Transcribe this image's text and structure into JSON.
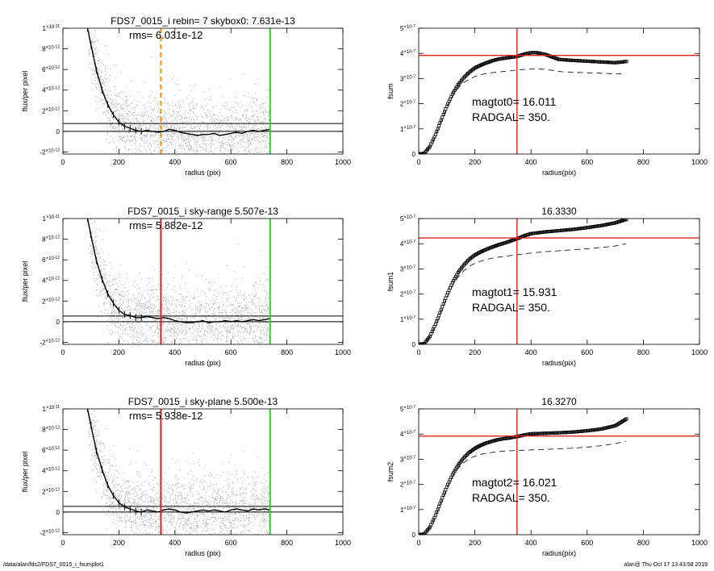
{
  "footer": {
    "left": "/data/alan/fds2/FDS7_0015_i_fsumplot1",
    "right": "alan@  Thu Oct 17 13:43:58 2019"
  },
  "chart_data": [
    {
      "type": "scatter",
      "panel": "left-1",
      "title": "FDS7_0015_i rebin= 7    skybox0:  7.631e-13",
      "annotation": "rms= 6.031e-12",
      "xlabel": "radius (pix)",
      "ylabel": "flux/per pixel",
      "xlim": [
        0,
        1000
      ],
      "ylim": [
        -2.2e-12,
        1e-11
      ],
      "xticks": [
        "0",
        "200",
        "400",
        "600",
        "800",
        "1000"
      ],
      "yticks": [
        {
          "v": -2e-12,
          "m": "-2",
          "e": "-12"
        },
        {
          "v": 0,
          "m": "0",
          "e": ""
        },
        {
          "v": 2e-12,
          "m": "2",
          "e": "-12"
        },
        {
          "v": 4e-12,
          "m": "4",
          "e": "-12"
        },
        {
          "v": 6e-12,
          "m": "6",
          "e": "-12"
        },
        {
          "v": 8e-12,
          "m": "8",
          "e": "-12"
        },
        {
          "v": 1e-11,
          "m": "1",
          "e": "-11"
        }
      ],
      "profile": {
        "x": [
          88,
          100,
          120,
          140,
          160,
          180,
          200,
          220,
          240,
          260,
          280,
          300,
          320,
          340,
          360,
          380,
          400,
          420,
          440,
          460,
          480,
          500,
          520,
          540,
          560,
          580,
          600,
          620,
          640,
          660,
          680,
          700,
          720,
          740
        ],
        "y": [
          1e-11,
          8.4e-12,
          5.9e-12,
          4e-12,
          2.6e-12,
          1.6e-12,
          9e-13,
          5e-13,
          3e-13,
          1e-13,
          0,
          1e-13,
          0,
          -1e-13,
          0,
          2e-13,
          1e-13,
          -1e-13,
          -2e-13,
          -3e-13,
          -4e-13,
          -3e-13,
          -3e-13,
          -2e-13,
          -4e-13,
          -3e-13,
          -2e-13,
          -1e-13,
          -2e-13,
          0,
          1e-13,
          0,
          1e-13,
          2e-13
        ]
      },
      "hlines": [
        {
          "y": 0,
          "color": "#000000"
        },
        {
          "y": 7.631e-13,
          "color": "#000000"
        }
      ],
      "vlines": [
        {
          "x": 350,
          "color": "#ff8c00",
          "style": "dashed"
        },
        {
          "x": 740,
          "color": "#33cc33",
          "style": "solid"
        }
      ],
      "noise_sd": 2.2e-12,
      "scatter_color": "#aaaaaa"
    },
    {
      "type": "line",
      "panel": "right-1",
      "title": "",
      "xlabel": "radius(pix)",
      "ylabel": "fsum",
      "xlim": [
        0,
        1000
      ],
      "ylim": [
        0,
        5e-07
      ],
      "xticks": [
        "0",
        "200",
        "400",
        "600",
        "800",
        "1000"
      ],
      "yticks": [
        {
          "v": 0,
          "m": "0",
          "e": ""
        },
        {
          "v": 1e-07,
          "m": "1",
          "e": "-7"
        },
        {
          "v": 2e-07,
          "m": "2",
          "e": "-7"
        },
        {
          "v": 3e-07,
          "m": "3",
          "e": "-7"
        },
        {
          "v": 4e-07,
          "m": "4",
          "e": "-7"
        },
        {
          "v": 5e-07,
          "m": "5",
          "e": "-7"
        }
      ],
      "annotation1": "magtot0=  16.011",
      "annotation2": "RADGAL=    350.",
      "series": [
        {
          "style": "symbols",
          "x": [
            0,
            20,
            40,
            60,
            80,
            100,
            120,
            140,
            160,
            180,
            200,
            220,
            240,
            260,
            280,
            300,
            320,
            350,
            380,
            400,
            420,
            450,
            480,
            500,
            550,
            600,
            650,
            700,
            740
          ],
          "y": [
            0,
            3e-09,
            3e-08,
            7.8e-08,
            1.35e-07,
            1.9e-07,
            2.38e-07,
            2.75e-07,
            3.03e-07,
            3.25e-07,
            3.42e-07,
            3.53e-07,
            3.62e-07,
            3.7e-07,
            3.76e-07,
            3.8e-07,
            3.83e-07,
            3.88e-07,
            3.98e-07,
            4.03e-07,
            4.03e-07,
            3.96e-07,
            3.84e-07,
            3.76e-07,
            3.72e-07,
            3.69e-07,
            3.66e-07,
            3.63e-07,
            3.68e-07
          ]
        },
        {
          "style": "dashed",
          "x": [
            0,
            20,
            40,
            60,
            80,
            100,
            120,
            140,
            160,
            180,
            200,
            220,
            240,
            260,
            280,
            300,
            320,
            350,
            400,
            450,
            500,
            550,
            600,
            650,
            700,
            740
          ],
          "y": [
            0,
            3e-09,
            2.8e-08,
            7.5e-08,
            1.3e-07,
            1.84e-07,
            2.3e-07,
            2.62e-07,
            2.83e-07,
            2.98e-07,
            3.08e-07,
            3.15e-07,
            3.2e-07,
            3.23e-07,
            3.26e-07,
            3.28e-07,
            3.3e-07,
            3.34e-07,
            3.38e-07,
            3.37e-07,
            3.28e-07,
            3.25e-07,
            3.23e-07,
            3.21e-07,
            3.19e-07,
            3.2e-07
          ]
        }
      ],
      "hline": {
        "y": 3.92e-07,
        "color": "#dd2222"
      },
      "vline": {
        "x": 350,
        "color": "#dd2222"
      }
    },
    {
      "type": "scatter",
      "panel": "left-2",
      "title": "FDS7_0015_i sky-range  5.507e-13",
      "annotation": "rms= 5.882e-12",
      "xlabel": "radius (pix)",
      "ylabel": "flux/per pixel",
      "xlim": [
        0,
        1000
      ],
      "ylim": [
        -2.2e-12,
        1e-11
      ],
      "xticks": [
        "0",
        "200",
        "400",
        "600",
        "800",
        "1000"
      ],
      "yticks": [
        {
          "v": -2e-12,
          "m": "-2",
          "e": "-12"
        },
        {
          "v": 0,
          "m": "0",
          "e": ""
        },
        {
          "v": 2e-12,
          "m": "2",
          "e": "-12"
        },
        {
          "v": 4e-12,
          "m": "4",
          "e": "-12"
        },
        {
          "v": 6e-12,
          "m": "6",
          "e": "-12"
        },
        {
          "v": 8e-12,
          "m": "8",
          "e": "-12"
        },
        {
          "v": 1e-11,
          "m": "1",
          "e": "-11"
        }
      ],
      "profile": {
        "x": [
          88,
          100,
          120,
          140,
          160,
          180,
          200,
          220,
          240,
          260,
          280,
          300,
          320,
          340,
          360,
          380,
          400,
          420,
          440,
          460,
          480,
          500,
          520,
          540,
          560,
          580,
          600,
          620,
          640,
          660,
          680,
          700,
          720,
          740
        ],
        "y": [
          1e-11,
          8.4e-12,
          5.9e-12,
          4.1e-12,
          2.7e-12,
          1.8e-12,
          1.1e-12,
          7e-13,
          6e-13,
          4e-13,
          4e-13,
          5e-13,
          4e-13,
          3e-13,
          4e-13,
          3e-13,
          1e-13,
          0,
          -1e-13,
          -1e-13,
          0,
          1e-13,
          -1e-13,
          0,
          0,
          1e-13,
          0,
          1e-13,
          0,
          1e-13,
          2e-13,
          1e-13,
          2e-13,
          3e-13
        ]
      },
      "hlines": [
        {
          "y": 0,
          "color": "#000000"
        },
        {
          "y": 5.507e-13,
          "color": "#000000"
        }
      ],
      "vlines": [
        {
          "x": 350,
          "color": "#dd2222",
          "style": "solid"
        },
        {
          "x": 740,
          "color": "#33cc33",
          "style": "solid"
        }
      ],
      "noise_sd": 2.2e-12,
      "scatter_color": "#aaaaaa"
    },
    {
      "type": "line",
      "panel": "right-2",
      "title": "16.3330",
      "xlabel": "radius(pix)",
      "ylabel": "fsum1",
      "xlim": [
        0,
        1000
      ],
      "ylim": [
        0,
        5e-07
      ],
      "xticks": [
        "0",
        "200",
        "400",
        "600",
        "800",
        "1000"
      ],
      "yticks": [
        {
          "v": 0,
          "m": "0",
          "e": ""
        },
        {
          "v": 1e-07,
          "m": "1",
          "e": "-7"
        },
        {
          "v": 2e-07,
          "m": "2",
          "e": "-7"
        },
        {
          "v": 3e-07,
          "m": "3",
          "e": "-7"
        },
        {
          "v": 4e-07,
          "m": "4",
          "e": "-7"
        },
        {
          "v": 5e-07,
          "m": "5",
          "e": "-7"
        }
      ],
      "annotation1": "magtot1=  15.931",
      "annotation2": "RADGAL=    350.",
      "series": [
        {
          "style": "symbols",
          "x": [
            0,
            20,
            40,
            60,
            80,
            100,
            120,
            140,
            160,
            180,
            200,
            220,
            240,
            260,
            280,
            300,
            320,
            350,
            380,
            400,
            450,
            500,
            550,
            600,
            650,
            700,
            740
          ],
          "y": [
            0,
            3e-09,
            3.2e-08,
            8e-08,
            1.38e-07,
            1.95e-07,
            2.45e-07,
            2.85e-07,
            3.15e-07,
            3.38e-07,
            3.55e-07,
            3.67e-07,
            3.77e-07,
            3.86e-07,
            3.94e-07,
            4.01e-07,
            4.08e-07,
            4.2e-07,
            4.33e-07,
            4.4e-07,
            4.47e-07,
            4.52e-07,
            4.57e-07,
            4.64e-07,
            4.72e-07,
            4.83e-07,
            4.97e-07
          ]
        },
        {
          "style": "dashed",
          "x": [
            0,
            20,
            40,
            60,
            80,
            100,
            120,
            140,
            160,
            180,
            200,
            220,
            240,
            260,
            280,
            300,
            320,
            350,
            400,
            450,
            500,
            550,
            600,
            650,
            700,
            740
          ],
          "y": [
            0,
            3e-09,
            3e-08,
            7.6e-08,
            1.32e-07,
            1.86e-07,
            2.33e-07,
            2.68e-07,
            2.92e-07,
            3.1e-07,
            3.22e-07,
            3.3e-07,
            3.37e-07,
            3.42e-07,
            3.46e-07,
            3.49e-07,
            3.52e-07,
            3.56e-07,
            3.63e-07,
            3.68e-07,
            3.72e-07,
            3.76e-07,
            3.8e-07,
            3.85e-07,
            3.91e-07,
            4e-07
          ]
        }
      ],
      "hline": {
        "y": 4.23e-07,
        "color": "#dd2222"
      },
      "vline": {
        "x": 350,
        "color": "#dd2222"
      }
    },
    {
      "type": "scatter",
      "panel": "left-3",
      "title": "FDS7_0015_i sky-plane  5.500e-13",
      "annotation": "rms= 5.938e-12",
      "xlabel": "radius (pix)",
      "ylabel": "flux/per pixel",
      "xlim": [
        0,
        1000
      ],
      "ylim": [
        -2.2e-12,
        1e-11
      ],
      "xticks": [
        "0",
        "200",
        "400",
        "600",
        "800",
        "1000"
      ],
      "yticks": [
        {
          "v": -2e-12,
          "m": "-2",
          "e": "-12"
        },
        {
          "v": 0,
          "m": "0",
          "e": ""
        },
        {
          "v": 2e-12,
          "m": "2",
          "e": "-12"
        },
        {
          "v": 4e-12,
          "m": "4",
          "e": "-12"
        },
        {
          "v": 6e-12,
          "m": "6",
          "e": "-12"
        },
        {
          "v": 8e-12,
          "m": "8",
          "e": "-12"
        },
        {
          "v": 1e-11,
          "m": "1",
          "e": "-11"
        }
      ],
      "profile": {
        "x": [
          88,
          100,
          120,
          140,
          160,
          180,
          200,
          220,
          240,
          260,
          280,
          300,
          320,
          340,
          360,
          380,
          400,
          420,
          440,
          460,
          480,
          500,
          520,
          540,
          560,
          580,
          600,
          620,
          640,
          660,
          680,
          700,
          720,
          740
        ],
        "y": [
          1e-11,
          8.4e-12,
          5.9e-12,
          4.1e-12,
          2.6e-12,
          1.6e-12,
          9e-13,
          5e-13,
          3e-13,
          1e-13,
          0,
          2e-13,
          1e-13,
          0,
          2e-13,
          3e-13,
          2e-13,
          0,
          -1e-13,
          0,
          1e-13,
          2e-13,
          1e-13,
          2e-13,
          1e-13,
          0,
          2e-13,
          3e-13,
          2e-13,
          1e-13,
          3e-13,
          2e-13,
          3e-13,
          2e-13
        ]
      },
      "hlines": [
        {
          "y": 0,
          "color": "#000000"
        },
        {
          "y": 5.5e-13,
          "color": "#000000"
        }
      ],
      "vlines": [
        {
          "x": 350,
          "color": "#dd2222",
          "style": "solid"
        },
        {
          "x": 740,
          "color": "#33cc33",
          "style": "solid"
        }
      ],
      "noise_sd": 2.2e-12,
      "scatter_color": "#aaaaaa"
    },
    {
      "type": "line",
      "panel": "right-3",
      "title": "16.3270",
      "xlabel": "radius(pix)",
      "ylabel": "fsum2",
      "xlim": [
        0,
        1000
      ],
      "ylim": [
        0,
        5e-07
      ],
      "xticks": [
        "0",
        "200",
        "400",
        "600",
        "800",
        "1000"
      ],
      "yticks": [
        {
          "v": 0,
          "m": "0",
          "e": ""
        },
        {
          "v": 1e-07,
          "m": "1",
          "e": "-7"
        },
        {
          "v": 2e-07,
          "m": "2",
          "e": "-7"
        },
        {
          "v": 3e-07,
          "m": "3",
          "e": "-7"
        },
        {
          "v": 4e-07,
          "m": "4",
          "e": "-7"
        },
        {
          "v": 5e-07,
          "m": "5",
          "e": "-7"
        }
      ],
      "annotation1": "magtot2=  16.021",
      "annotation2": "RADGAL=    350.",
      "series": [
        {
          "style": "symbols",
          "x": [
            0,
            20,
            40,
            60,
            80,
            100,
            120,
            140,
            160,
            180,
            200,
            220,
            240,
            260,
            280,
            300,
            320,
            350,
            380,
            400,
            450,
            500,
            550,
            600,
            650,
            700,
            740
          ],
          "y": [
            0,
            3e-09,
            3e-08,
            7.8e-08,
            1.35e-07,
            1.9e-07,
            2.38e-07,
            2.76e-07,
            3.05e-07,
            3.27e-07,
            3.43e-07,
            3.55e-07,
            3.64e-07,
            3.71e-07,
            3.77e-07,
            3.81e-07,
            3.84e-07,
            3.9e-07,
            3.97e-07,
            4.01e-07,
            4.03e-07,
            4.05e-07,
            4.08e-07,
            4.13e-07,
            4.2e-07,
            4.33e-07,
            4.6e-07
          ]
        },
        {
          "style": "dashed",
          "x": [
            0,
            20,
            40,
            60,
            80,
            100,
            120,
            140,
            160,
            180,
            200,
            220,
            240,
            260,
            280,
            300,
            320,
            350,
            400,
            450,
            500,
            550,
            600,
            650,
            700,
            740
          ],
          "y": [
            0,
            3e-09,
            2.8e-08,
            7.5e-08,
            1.3e-07,
            1.84e-07,
            2.3e-07,
            2.63e-07,
            2.86e-07,
            3.02e-07,
            3.12e-07,
            3.19e-07,
            3.24e-07,
            3.27e-07,
            3.3e-07,
            3.32e-07,
            3.33e-07,
            3.35e-07,
            3.37e-07,
            3.39e-07,
            3.41e-07,
            3.44e-07,
            3.48e-07,
            3.54e-07,
            3.62e-07,
            3.72e-07
          ]
        }
      ],
      "hline": {
        "y": 3.92e-07,
        "color": "#dd2222"
      },
      "vline": {
        "x": 350,
        "color": "#dd2222"
      }
    }
  ]
}
